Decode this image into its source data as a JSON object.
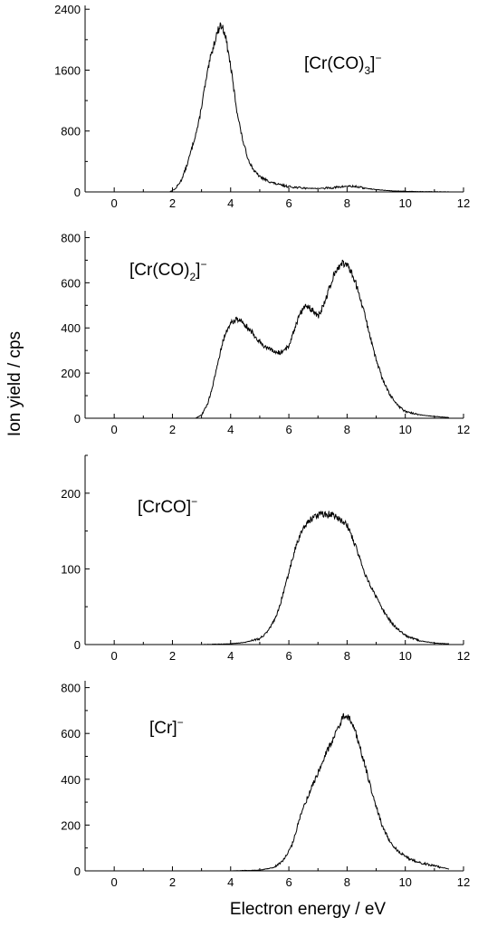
{
  "figure": {
    "xlabel": "Electron energy / eV",
    "ylabel": "Ion yield / cps"
  },
  "chart_data": [
    {
      "type": "line",
      "label_parts": [
        "[Cr(CO)",
        "3",
        "]",
        "−"
      ],
      "xlim": [
        -1,
        12
      ],
      "ylim": [
        0,
        2450
      ],
      "xticks": [
        0,
        2,
        4,
        6,
        8,
        10,
        12
      ],
      "yticks": [
        0,
        800,
        1600,
        2400
      ],
      "series": [
        {
          "x": [
            -1,
            1.9,
            2.1,
            2.3,
            2.5,
            2.7,
            2.9,
            3.1,
            3.3,
            3.5,
            3.65,
            3.8,
            4.0,
            4.2,
            4.4,
            4.6,
            4.8,
            5.0,
            5.3,
            5.6,
            6.0,
            6.5,
            7.0,
            7.5,
            8.0,
            8.3,
            8.6,
            9.0,
            9.5,
            10.0,
            10.5,
            11.0,
            11.5
          ],
          "y": [
            0,
            0,
            40,
            150,
            350,
            620,
            900,
            1350,
            1750,
            2050,
            2200,
            2100,
            1650,
            1100,
            700,
            430,
            280,
            200,
            140,
            100,
            70,
            50,
            45,
            55,
            75,
            70,
            50,
            30,
            15,
            8,
            4,
            2,
            0
          ]
        }
      ]
    },
    {
      "type": "line",
      "label_parts": [
        "[Cr(CO)",
        "2",
        "]",
        "−"
      ],
      "xlim": [
        -1,
        12
      ],
      "ylim": [
        0,
        830
      ],
      "xticks": [
        0,
        2,
        4,
        6,
        8,
        10,
        12
      ],
      "yticks": [
        0,
        200,
        400,
        600,
        800
      ],
      "series": [
        {
          "x": [
            -1,
            2.8,
            3.0,
            3.2,
            3.4,
            3.6,
            3.8,
            4.0,
            4.2,
            4.4,
            4.6,
            4.8,
            5.0,
            5.2,
            5.4,
            5.6,
            5.8,
            6.0,
            6.2,
            6.4,
            6.6,
            6.8,
            7.0,
            7.2,
            7.4,
            7.6,
            7.8,
            8.0,
            8.2,
            8.4,
            8.6,
            8.8,
            9.0,
            9.2,
            9.4,
            9.6,
            9.8,
            10.0,
            10.5,
            11.0,
            11.5
          ],
          "y": [
            0,
            0,
            15,
            60,
            150,
            270,
            370,
            420,
            440,
            430,
            400,
            370,
            340,
            315,
            300,
            290,
            295,
            320,
            400,
            470,
            500,
            480,
            450,
            500,
            580,
            650,
            690,
            680,
            630,
            560,
            460,
            360,
            260,
            180,
            120,
            80,
            50,
            30,
            15,
            8,
            3
          ]
        }
      ]
    },
    {
      "type": "line",
      "label_parts": [
        "[CrCO]",
        "",
        "",
        "−"
      ],
      "xlim": [
        -1,
        12
      ],
      "ylim": [
        0,
        250
      ],
      "xticks": [
        0,
        2,
        4,
        6,
        8,
        10,
        12
      ],
      "yticks": [
        0,
        100,
        200
      ],
      "series": [
        {
          "x": [
            -1,
            3.0,
            4.0,
            4.5,
            5.0,
            5.3,
            5.6,
            5.9,
            6.2,
            6.5,
            6.8,
            7.1,
            7.4,
            7.7,
            8.0,
            8.3,
            8.6,
            8.9,
            9.2,
            9.5,
            9.8,
            10.1,
            10.5,
            11.0,
            11.5
          ],
          "y": [
            0,
            0,
            1,
            3,
            8,
            18,
            40,
            80,
            125,
            155,
            168,
            172,
            172,
            168,
            158,
            130,
            95,
            70,
            48,
            30,
            18,
            10,
            5,
            2,
            1
          ]
        }
      ]
    },
    {
      "type": "line",
      "label_parts": [
        "[Cr]",
        "",
        "",
        "−"
      ],
      "xlim": [
        -1,
        12
      ],
      "ylim": [
        0,
        830
      ],
      "xticks": [
        0,
        2,
        4,
        6,
        8,
        10,
        12
      ],
      "yticks": [
        0,
        200,
        400,
        600,
        800
      ],
      "series": [
        {
          "x": [
            -1,
            4.0,
            5.0,
            5.5,
            5.8,
            6.1,
            6.4,
            6.7,
            7.0,
            7.3,
            7.6,
            7.9,
            8.1,
            8.3,
            8.6,
            8.9,
            9.2,
            9.5,
            9.8,
            10.1,
            10.4,
            10.7,
            11.0,
            11.5
          ],
          "y": [
            0,
            0,
            3,
            15,
            45,
            110,
            240,
            340,
            430,
            520,
            600,
            680,
            660,
            600,
            470,
            320,
            200,
            120,
            80,
            55,
            40,
            30,
            22,
            8
          ]
        }
      ]
    }
  ]
}
